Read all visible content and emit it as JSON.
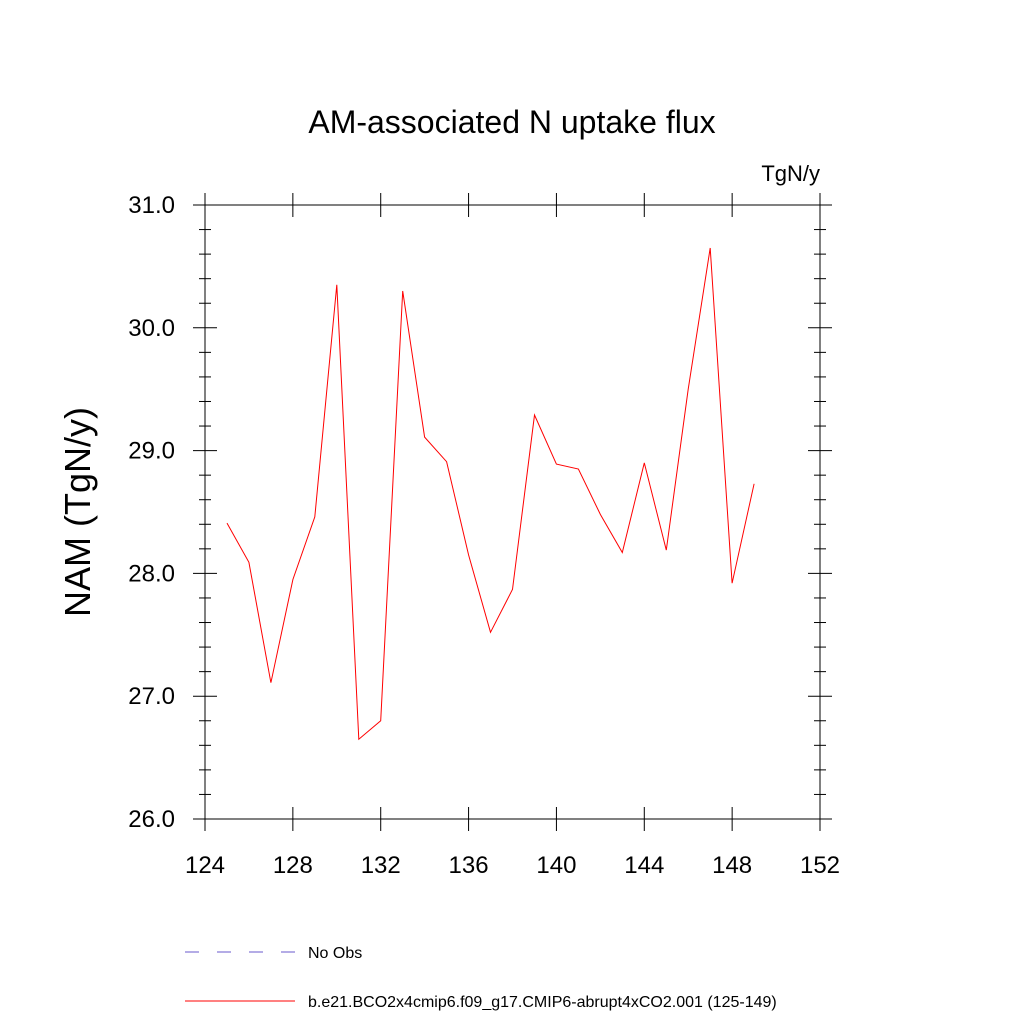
{
  "chart_data": {
    "type": "line",
    "title": "AM-associated N uptake flux",
    "units_label": "TgN/y",
    "ylabel": "NAM  (TgN/y)",
    "xlabel": "",
    "xlim": [
      124,
      152
    ],
    "ylim": [
      26.0,
      31.0
    ],
    "x_ticks": [
      124,
      128,
      132,
      136,
      140,
      144,
      148,
      152
    ],
    "y_ticks": [
      "26.0",
      "27.0",
      "28.0",
      "29.0",
      "30.0",
      "31.0"
    ],
    "grid": false,
    "legend_position": "bottom",
    "series": [
      {
        "name": "b.e21.BCO2x4cmip6.f09_g17.CMIP6-abrupt4xCO2.001 (125-149)",
        "color": "#ff0000",
        "style": "solid",
        "x": [
          125,
          126,
          127,
          128,
          129,
          130,
          131,
          132,
          133,
          134,
          135,
          136,
          137,
          138,
          139,
          140,
          141,
          142,
          143,
          144,
          145,
          146,
          147,
          148,
          149
        ],
        "y": [
          28.41,
          28.09,
          27.11,
          27.95,
          28.46,
          30.35,
          26.65,
          26.8,
          30.3,
          29.11,
          28.91,
          28.15,
          27.52,
          27.87,
          29.29,
          28.89,
          28.85,
          28.48,
          28.17,
          28.9,
          28.19,
          29.5,
          30.65,
          27.92,
          28.73
        ]
      }
    ],
    "legend": [
      {
        "label": "No Obs",
        "color": "#6a5acd",
        "style": "dashed"
      },
      {
        "label": "b.e21.BCO2x4cmip6.f09_g17.CMIP6-abrupt4xCO2.001 (125-149)",
        "color": "#ff0000",
        "style": "solid"
      }
    ]
  }
}
